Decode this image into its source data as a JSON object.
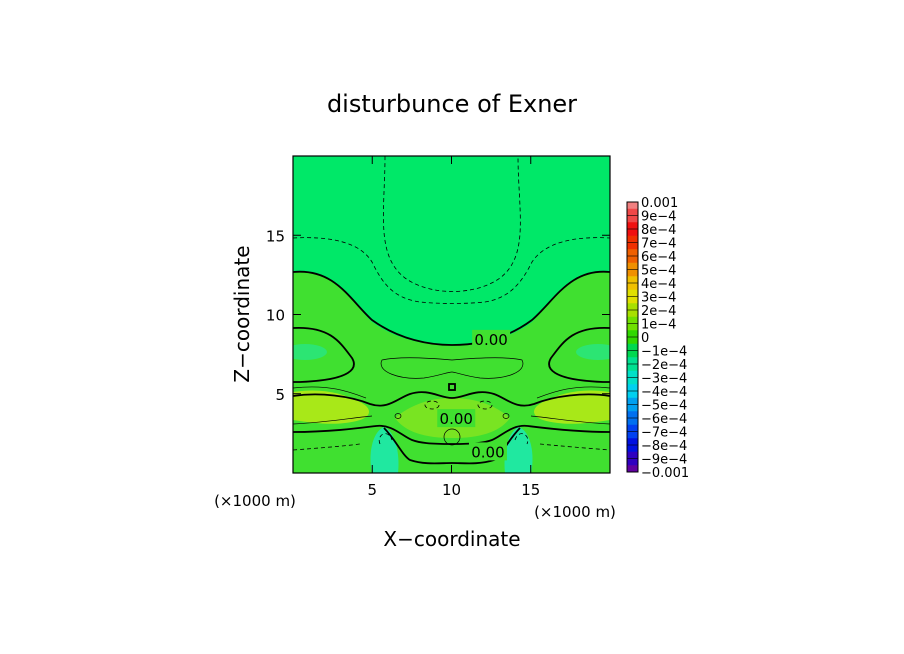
{
  "chart_data": {
    "type": "heatmap",
    "title": "disturbunce of Exner",
    "xlabel": "X−coordinate",
    "ylabel": "Z−coordinate",
    "x_unit": "(×1000 m)",
    "y_unit": "(×1000 m)",
    "xlim": [
      0,
      20
    ],
    "ylim": [
      0,
      20
    ],
    "x_ticks": [
      5,
      10,
      15
    ],
    "y_ticks": [
      5,
      10,
      15
    ],
    "contour_labels": [
      {
        "text": "0.00",
        "x": 12.5,
        "z": 8.4
      },
      {
        "text": "0.00",
        "x": 10.3,
        "z": 3.4
      },
      {
        "text": "0.00",
        "x": 12.3,
        "z": 1.3
      }
    ],
    "colorbar": {
      "labels": [
        "0.001",
        "9e−4",
        "8e−4",
        "7e−4",
        "6e−4",
        "5e−4",
        "4e−4",
        "3e−4",
        "2e−4",
        "1e−4",
        "0",
        "−1e−4",
        "−2e−4",
        "−3e−4",
        "−4e−4",
        "−5e−4",
        "−6e−4",
        "−7e−4",
        "−8e−4",
        "−9e−4",
        "−0.001"
      ],
      "colors": [
        "#f08080",
        "#f04848",
        "#f01010",
        "#f03000",
        "#f06000",
        "#f09000",
        "#f0c000",
        "#e0e000",
        "#a8e000",
        "#70e000",
        "#30d800",
        "#00d850",
        "#00e090",
        "#00e0c8",
        "#00d0f0",
        "#00a0f0",
        "#0070f0",
        "#0040f0",
        "#0010e0",
        "#3000c0",
        "#6000a0"
      ]
    },
    "field_colors": {
      "background": "#00e868",
      "positive_band": "#40e030",
      "strong_positive": "#a8e818",
      "negative_patch": "#20e8a0"
    }
  }
}
